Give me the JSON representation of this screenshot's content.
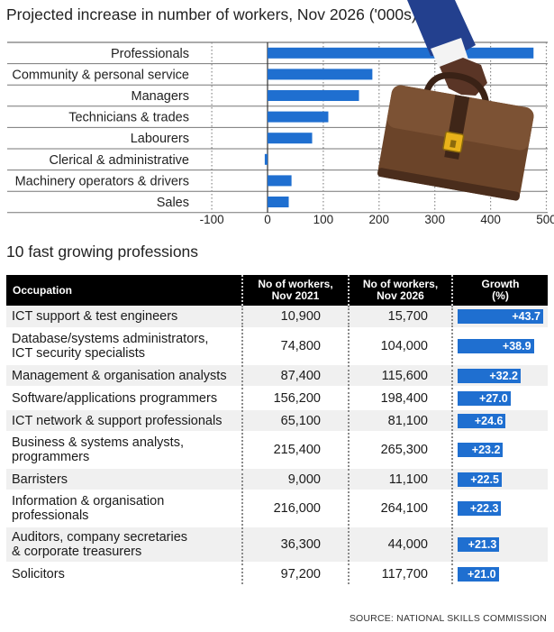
{
  "colors": {
    "bar": "#1f6fd0",
    "grid": "#888888",
    "header_bg": "#000000"
  },
  "chart_data": [
    {
      "type": "bar",
      "orientation": "horizontal",
      "title": "Projected increase in number of workers, Nov 2026 ('000s)",
      "categories": [
        "Professionals",
        "Community & personal service",
        "Managers",
        "Technicians & trades",
        "Labourers",
        "Clerical & administrative",
        "Machinery operators & drivers",
        "Sales"
      ],
      "values": [
        477,
        188,
        164,
        109,
        80,
        -5,
        43,
        38
      ],
      "xlim": [
        -100,
        500
      ],
      "xticks": [
        -100,
        0,
        100,
        200,
        300,
        400,
        500
      ],
      "xlabel": "",
      "ylabel": ""
    },
    {
      "type": "table",
      "title": "10 fast growing professions",
      "columns": [
        "Occupation",
        "No of workers, Nov 2021",
        "No of workers, Nov 2026",
        "Growth (%)"
      ],
      "rows": [
        {
          "occupation": [
            "ICT support & test engineers"
          ],
          "nov2021": "10,900",
          "nov2026": "15,700",
          "growth": 43.7,
          "growth_label": "+43.7"
        },
        {
          "occupation": [
            "Database/systems administrators,",
            "ICT security specialists"
          ],
          "nov2021": "74,800",
          "nov2026": "104,000",
          "growth": 38.9,
          "growth_label": "+38.9"
        },
        {
          "occupation": [
            "Management & organisation analysts"
          ],
          "nov2021": "87,400",
          "nov2026": "115,600",
          "growth": 32.2,
          "growth_label": "+32.2"
        },
        {
          "occupation": [
            "Software/applications programmers"
          ],
          "nov2021": "156,200",
          "nov2026": "198,400",
          "growth": 27.0,
          "growth_label": "+27.0"
        },
        {
          "occupation": [
            "ICT network & support professionals"
          ],
          "nov2021": "65,100",
          "nov2026": "81,100",
          "growth": 24.6,
          "growth_label": "+24.6"
        },
        {
          "occupation": [
            "Business & systems analysts,",
            "programmers"
          ],
          "nov2021": "215,400",
          "nov2026": "265,300",
          "growth": 23.2,
          "growth_label": "+23.2"
        },
        {
          "occupation": [
            "Barristers"
          ],
          "nov2021": "9,000",
          "nov2026": "11,100",
          "growth": 22.5,
          "growth_label": "+22.5"
        },
        {
          "occupation": [
            "Information & organisation",
            "professionals"
          ],
          "nov2021": "216,000",
          "nov2026": "264,100",
          "growth": 22.3,
          "growth_label": "+22.3"
        },
        {
          "occupation": [
            "Auditors, company secretaries",
            "& corporate treasurers"
          ],
          "nov2021": "36,300",
          "nov2026": "44,000",
          "growth": 21.3,
          "growth_label": "+21.3"
        },
        {
          "occupation": [
            "Solicitors"
          ],
          "nov2021": "97,200",
          "nov2026": "117,700",
          "growth": 21.0,
          "growth_label": "+21.0"
        }
      ]
    }
  ],
  "table_header": {
    "col1": "Occupation",
    "col2_line1": "No of workers,",
    "col2_line2": "Nov 2021",
    "col3_line1": "No of workers,",
    "col3_line2": "Nov 2026",
    "col4_line1": "Growth",
    "col4_line2": "(%)"
  },
  "source": "SOURCE: NATIONAL SKILLS COMMISSION"
}
